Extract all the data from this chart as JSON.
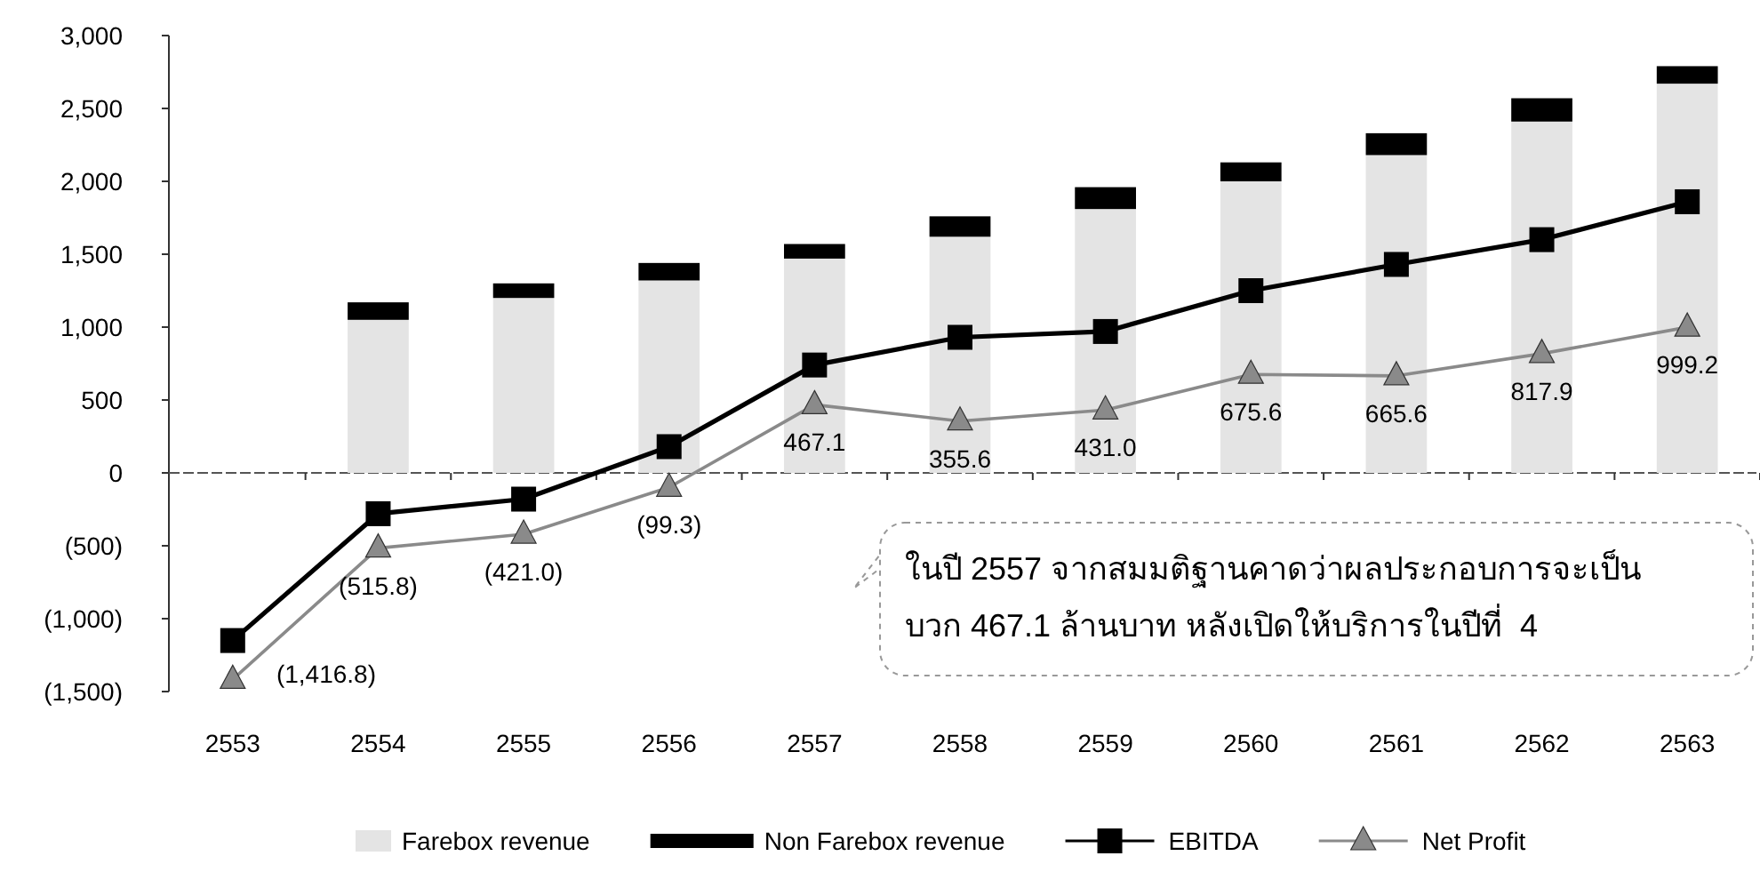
{
  "chart_data": {
    "type": "bar",
    "stacked": true,
    "categories": [
      "2553",
      "2554",
      "2555",
      "2556",
      "2557",
      "2558",
      "2559",
      "2560",
      "2561",
      "2562",
      "2563"
    ],
    "series": [
      {
        "name": "Farebox revenue",
        "color": "#e4e4e4",
        "values": [
          null,
          1050,
          1200,
          1320,
          1470,
          1620,
          1810,
          2000,
          2180,
          2410,
          2670
        ]
      },
      {
        "name": "Non Farebox revenue",
        "color": "#000000",
        "values": [
          null,
          120,
          100,
          120,
          100,
          140,
          150,
          130,
          150,
          160,
          120
        ]
      },
      {
        "name": "EBITDA",
        "type": "line",
        "color": "#000000",
        "marker": "square",
        "values": [
          -1150,
          -280,
          -180,
          180,
          740,
          930,
          970,
          1250,
          1430,
          1600,
          1860
        ]
      },
      {
        "name": "Net Profit",
        "type": "line",
        "color": "#8a8a8a",
        "marker": "triangle",
        "values": [
          -1416.8,
          -515.8,
          -421.0,
          -99.3,
          467.1,
          355.6,
          431.0,
          675.6,
          665.6,
          817.9,
          999.2
        ],
        "value_labels": [
          "(1,416.8)",
          "(515.8)",
          "(421.0)",
          "(99.3)",
          "467.1",
          "355.6",
          "431.0",
          "675.6",
          "665.6",
          "817.9",
          "999.2"
        ]
      }
    ],
    "ylim": [
      -1500,
      3000
    ],
    "yticks": [
      {
        "value": 3000,
        "label": "3,000"
      },
      {
        "value": 2500,
        "label": "2,500"
      },
      {
        "value": 2000,
        "label": "2,000"
      },
      {
        "value": 1500,
        "label": "1,500"
      },
      {
        "value": 1000,
        "label": "1,000"
      },
      500,
      0,
      {
        "value": -500,
        "label": "(500)"
      },
      {
        "value": -1000,
        "label": "(1,000)"
      },
      {
        "value": -1500,
        "label": "(1,500)"
      }
    ],
    "legend": "bottom",
    "annotations": [
      "ในปี 2557 จากสมมติฐานคาดว่าผลประกอบการจะเป็น\nบวก 467.1 ล้านบาท หลังเปิดให้บริการในปีที่  4"
    ]
  }
}
